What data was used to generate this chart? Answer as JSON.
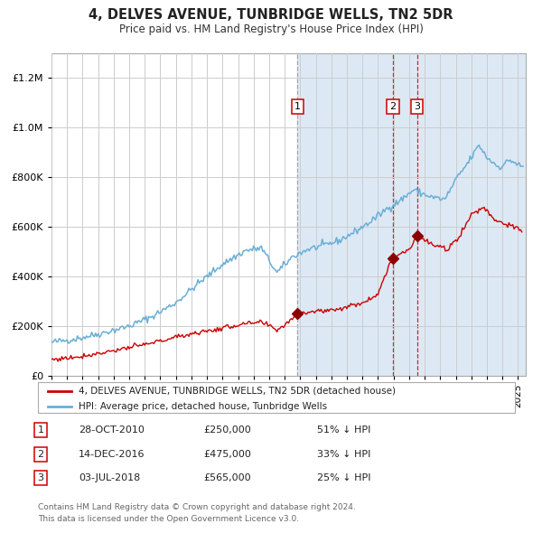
{
  "title": "4, DELVES AVENUE, TUNBRIDGE WELLS, TN2 5DR",
  "subtitle": "Price paid vs. HM Land Registry's House Price Index (HPI)",
  "ylim": [
    0,
    1300000
  ],
  "xlim_start": 1995.0,
  "xlim_end": 2025.5,
  "shaded_region_color": "#dce9f5",
  "grid_color": "#cccccc",
  "hpi_line_color": "#6aaed6",
  "price_line_color": "#cc0000",
  "sale_marker_color": "#8b0000",
  "transactions": [
    {
      "date_num": 2010.83,
      "price": 250000,
      "label": "1"
    },
    {
      "date_num": 2016.96,
      "price": 475000,
      "label": "2"
    },
    {
      "date_num": 2018.5,
      "price": 565000,
      "label": "3"
    }
  ],
  "vline_colors": [
    "#999999",
    "#cc0000",
    "#cc0000"
  ],
  "legend_house_label": "4, DELVES AVENUE, TUNBRIDGE WELLS, TN2 5DR (detached house)",
  "legend_hpi_label": "HPI: Average price, detached house, Tunbridge Wells",
  "table_rows": [
    {
      "num": "1",
      "date": "28-OCT-2010",
      "price": "£250,000",
      "note": "51% ↓ HPI"
    },
    {
      "num": "2",
      "date": "14-DEC-2016",
      "price": "£475,000",
      "note": "33% ↓ HPI"
    },
    {
      "num": "3",
      "date": "03-JUL-2018",
      "price": "£565,000",
      "note": "25% ↓ HPI"
    }
  ],
  "footer_line1": "Contains HM Land Registry data © Crown copyright and database right 2024.",
  "footer_line2": "This data is licensed under the Open Government Licence v3.0.",
  "yticks": [
    0,
    200000,
    400000,
    600000,
    800000,
    1000000,
    1200000
  ],
  "hpi_anchors_x": [
    1995.0,
    1996.5,
    1998.0,
    2000.0,
    2001.5,
    2003.0,
    2004.5,
    2006.0,
    2007.5,
    2008.5,
    2009.5,
    2010.5,
    2011.5,
    2012.5,
    2013.5,
    2014.5,
    2015.5,
    2016.5,
    2017.5,
    2018.3,
    2018.8,
    2019.5,
    2020.3,
    2021.0,
    2021.8,
    2022.5,
    2023.0,
    2023.8,
    2024.5,
    2025.3
  ],
  "hpi_anchors_y": [
    135000,
    148000,
    168000,
    200000,
    240000,
    295000,
    375000,
    450000,
    505000,
    515000,
    415000,
    480000,
    510000,
    525000,
    545000,
    580000,
    620000,
    670000,
    710000,
    750000,
    735000,
    720000,
    710000,
    790000,
    860000,
    930000,
    880000,
    840000,
    870000,
    840000
  ],
  "price_anchors_x": [
    1995.0,
    1996.5,
    1998.0,
    1999.5,
    2001.0,
    2002.5,
    2004.0,
    2005.5,
    2007.0,
    2008.5,
    2009.5,
    2010.0,
    2010.83,
    2011.5,
    2012.5,
    2013.5,
    2014.5,
    2015.5,
    2016.0,
    2016.96,
    2017.3,
    2018.0,
    2018.5,
    2019.0,
    2019.8,
    2020.5,
    2021.3,
    2022.0,
    2022.8,
    2023.5,
    2024.3,
    2025.2
  ],
  "price_anchors_y": [
    65000,
    75000,
    90000,
    108000,
    125000,
    148000,
    170000,
    185000,
    205000,
    215000,
    185000,
    205000,
    250000,
    258000,
    262000,
    270000,
    285000,
    310000,
    335000,
    475000,
    490000,
    510000,
    565000,
    545000,
    520000,
    510000,
    570000,
    650000,
    680000,
    630000,
    610000,
    585000
  ]
}
